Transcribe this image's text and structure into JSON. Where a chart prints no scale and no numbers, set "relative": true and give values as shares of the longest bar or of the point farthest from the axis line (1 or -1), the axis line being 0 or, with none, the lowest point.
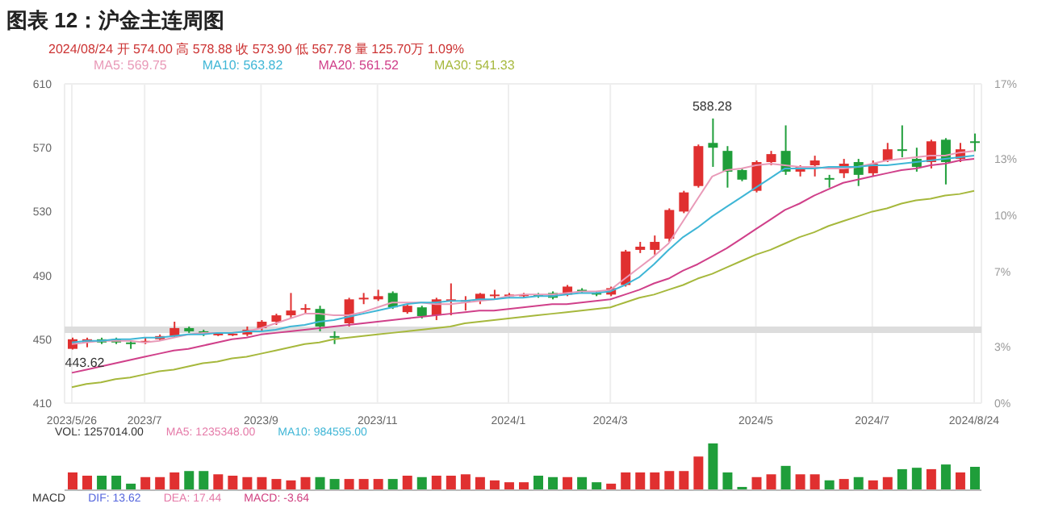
{
  "chart_data": [
    {
      "type": "candlestick",
      "title": "图表 12：沪金主连周图",
      "annotations": [
        "2024/08/24 开 574.00 高 578.88 收 573.90 低 567.78 量 125.70万 1.09%",
        {
          "text": "588.28",
          "y": 588.28
        },
        {
          "text": "443.62",
          "y": 443.62
        }
      ],
      "categories": [
        "2023/5/26",
        null,
        null,
        null,
        null,
        "2023/7",
        null,
        null,
        null,
        null,
        null,
        null,
        null,
        "2023/9",
        null,
        null,
        null,
        null,
        null,
        null,
        null,
        "2023/11",
        null,
        null,
        null,
        null,
        null,
        null,
        null,
        null,
        "2024/1",
        null,
        null,
        null,
        null,
        null,
        null,
        "2024/3",
        null,
        null,
        null,
        null,
        null,
        null,
        null,
        null,
        null,
        "2024/5",
        null,
        null,
        null,
        null,
        null,
        null,
        null,
        "2024/7",
        null,
        null,
        null,
        null,
        null,
        null,
        "2024/8/24"
      ],
      "ohlc": [
        [
          444,
          451,
          443.62,
          450
        ],
        [
          448,
          451,
          445,
          450
        ],
        [
          450,
          451,
          447,
          448
        ],
        [
          450,
          451,
          447,
          448
        ],
        [
          448,
          449,
          444,
          447
        ],
        [
          448,
          451,
          447,
          449
        ],
        [
          450,
          453,
          449,
          452
        ],
        [
          452,
          461,
          451,
          457
        ],
        [
          457,
          458,
          454,
          455
        ],
        [
          455,
          456,
          452,
          453
        ],
        [
          453,
          454,
          452,
          453.5
        ],
        [
          453,
          454,
          452,
          453.5
        ],
        [
          453,
          458,
          452,
          456
        ],
        [
          457,
          462,
          455,
          461
        ],
        [
          461,
          466,
          459,
          465
        ],
        [
          465,
          479,
          463,
          468
        ],
        [
          469,
          472,
          466,
          469.5
        ],
        [
          469,
          471,
          455,
          458
        ],
        [
          452,
          455,
          447,
          451
        ],
        [
          460,
          476,
          458,
          475
        ],
        [
          475,
          479,
          472,
          476
        ],
        [
          475,
          481,
          474,
          477
        ],
        [
          479,
          480,
          469,
          470
        ],
        [
          467,
          472,
          466,
          471
        ],
        [
          470,
          471,
          463,
          464.5
        ],
        [
          465,
          476,
          462,
          475
        ],
        [
          474,
          485,
          465,
          475
        ],
        [
          474,
          477,
          468,
          474.5
        ],
        [
          474.5,
          479,
          472,
          478.5
        ],
        [
          477,
          481,
          475,
          478
        ],
        [
          477,
          479,
          476,
          478
        ],
        [
          477,
          479,
          476,
          478
        ],
        [
          478,
          479,
          476,
          477
        ],
        [
          479,
          480,
          475,
          476
        ],
        [
          478,
          484,
          477,
          483
        ],
        [
          481,
          482,
          479,
          480
        ],
        [
          479,
          480,
          477,
          478
        ],
        [
          478,
          483,
          477,
          482
        ],
        [
          484,
          506,
          483,
          505
        ],
        [
          506,
          511,
          504,
          508
        ],
        [
          506,
          515,
          503,
          511
        ],
        [
          513,
          532,
          511,
          531
        ],
        [
          530,
          543,
          529,
          542
        ],
        [
          546,
          572,
          545,
          571
        ],
        [
          573,
          588.28,
          558,
          570
        ],
        [
          568,
          571,
          545,
          555
        ],
        [
          556,
          557,
          549,
          550
        ],
        [
          543,
          562,
          542,
          561
        ],
        [
          561,
          568,
          559,
          566
        ],
        [
          568,
          584,
          553,
          555
        ],
        [
          555,
          559,
          552,
          558
        ],
        [
          559,
          565,
          552,
          562
        ],
        [
          551,
          553,
          545,
          550
        ],
        [
          554,
          563,
          551,
          560
        ],
        [
          561,
          563,
          546,
          553
        ],
        [
          554,
          562,
          552,
          560
        ],
        [
          562,
          573,
          561,
          569
        ],
        [
          569,
          584,
          564,
          568
        ],
        [
          563,
          570,
          555,
          558
        ],
        [
          561,
          575,
          557,
          574
        ],
        [
          575,
          576,
          547,
          561
        ],
        [
          563,
          573,
          561,
          569
        ],
        [
          574,
          578.88,
          567.78,
          573.9
        ]
      ],
      "colors": [
        "#e03030",
        "#e03030",
        "#1f9e3a",
        "#1f9e3a",
        "#1f9e3a",
        "#e03030",
        "#e03030",
        "#e03030",
        "#1f9e3a",
        "#1f9e3a",
        "#e03030",
        "#e03030",
        "#e03030",
        "#e03030",
        "#e03030",
        "#e03030",
        "#e03030",
        "#1f9e3a",
        "#1f9e3a",
        "#e03030",
        "#e03030",
        "#e03030",
        "#1f9e3a",
        "#e03030",
        "#1f9e3a",
        "#e03030",
        "#e03030",
        "#e03030",
        "#e03030",
        "#e03030",
        "#e03030",
        "#e03030",
        "#1f9e3a",
        "#1f9e3a",
        "#e03030",
        "#1f9e3a",
        "#1f9e3a",
        "#e03030",
        "#e03030",
        "#e03030",
        "#e03030",
        "#e03030",
        "#e03030",
        "#e03030",
        "#1f9e3a",
        "#1f9e3a",
        "#1f9e3a",
        "#e03030",
        "#e03030",
        "#1f9e3a",
        "#e03030",
        "#e03030",
        "#1f9e3a",
        "#e03030",
        "#1f9e3a",
        "#e03030",
        "#e03030",
        "#1f9e3a",
        "#1f9e3a",
        "#e03030",
        "#1f9e3a",
        "#e03030",
        "#1f9e3a"
      ],
      "series": [
        {
          "type": "line",
          "name": "MA5: 569.75",
          "color": "#e99ab8",
          "values": [
            447,
            448,
            449,
            449,
            449,
            448,
            449,
            451,
            453,
            454,
            454,
            454,
            455,
            457,
            460,
            463,
            466,
            466,
            465,
            465,
            467,
            470,
            473,
            473,
            473,
            472,
            472,
            473,
            474,
            475,
            477,
            478,
            478,
            478,
            479,
            480,
            480,
            481,
            488,
            495,
            502,
            510,
            524,
            538,
            552,
            556,
            557,
            559,
            560,
            559,
            558,
            558,
            557,
            557,
            558,
            560,
            562,
            563,
            564,
            565,
            565,
            567,
            568
          ]
        },
        {
          "type": "line",
          "name": "MA10: 563.82",
          "color": "#3fb6d6",
          "values": [
            448,
            449,
            449,
            450,
            450,
            451,
            451,
            452,
            453,
            453,
            454,
            454,
            455,
            455,
            456,
            458,
            459,
            461,
            462,
            464,
            466,
            468,
            470,
            472,
            473,
            473,
            474,
            474,
            475,
            475,
            476,
            476,
            477,
            477,
            478,
            479,
            479,
            480,
            484,
            489,
            497,
            506,
            514,
            520,
            527,
            533,
            539,
            545,
            551,
            557,
            557,
            557,
            558,
            558,
            558,
            559,
            559,
            560,
            561,
            562,
            563,
            564,
            565
          ]
        },
        {
          "type": "line",
          "name": "MA20: 561.52",
          "color": "#d0408a",
          "values": [
            429,
            431,
            433,
            435,
            437,
            439,
            441,
            443,
            444,
            446,
            448,
            450,
            451,
            453,
            454,
            455,
            456,
            457,
            458,
            459,
            460,
            461,
            462,
            463,
            464,
            465,
            466,
            467,
            468,
            468,
            469,
            470,
            471,
            472,
            472,
            473,
            474,
            475,
            478,
            481,
            485,
            488,
            493,
            497,
            502,
            507,
            513,
            519,
            525,
            531,
            535,
            540,
            544,
            548,
            550,
            552,
            554,
            556,
            557,
            559,
            560,
            562,
            563
          ]
        },
        {
          "type": "line",
          "name": "MA30: 541.33",
          "color": "#a6b83c",
          "values": [
            420,
            422,
            423,
            425,
            426,
            428,
            430,
            431,
            433,
            435,
            436,
            438,
            439,
            441,
            443,
            445,
            447,
            448,
            450,
            451,
            452,
            453,
            454,
            455,
            456,
            457,
            458,
            460,
            461,
            462,
            463,
            464,
            465,
            466,
            467,
            468,
            469,
            470,
            473,
            476,
            478,
            481,
            484,
            488,
            491,
            495,
            499,
            503,
            506,
            510,
            514,
            517,
            521,
            524,
            527,
            530,
            532,
            535,
            537,
            538,
            540,
            541,
            543
          ]
        }
      ],
      "ylim": [
        410,
        610
      ],
      "yticks": [
        410,
        450,
        490,
        530,
        570,
        610
      ],
      "y2lim": [
        0,
        17
      ],
      "y2ticks": [
        {
          "value": 0,
          "label": "0%"
        },
        {
          "value": 3,
          "label": "3%"
        },
        {
          "value": 7,
          "label": "7%"
        },
        {
          "value": 10,
          "label": "10%"
        },
        {
          "value": 13,
          "label": "13%"
        },
        {
          "value": 17,
          "label": "17%"
        }
      ],
      "bands": [
        {
          "axis": "y",
          "from": 454,
          "to": 458,
          "color": "#dddddd"
        }
      ],
      "grid": true,
      "legend": "top left"
    },
    {
      "type": "bar",
      "relative": true,
      "tick_labels": false,
      "annotations": [
        "VOL: 1257014.00",
        "MA5: 1235348.00",
        "MA10: 984595.00",
        "MACD",
        "DIF: 13.62",
        "DEA: 17.44",
        "MACD: -3.64"
      ],
      "categories": [
        "2023/5/26",
        null,
        null,
        null,
        null,
        "2023/7",
        null,
        null,
        null,
        null,
        null,
        null,
        null,
        "2023/9",
        null,
        null,
        null,
        null,
        null,
        null,
        null,
        "2023/11",
        null,
        null,
        null,
        null,
        null,
        null,
        null,
        null,
        "2024/1",
        null,
        null,
        null,
        null,
        null,
        null,
        "2024/3",
        null,
        null,
        null,
        null,
        null,
        null,
        null,
        null,
        null,
        "2024/5",
        null,
        null,
        null,
        null,
        null,
        null,
        null,
        "2024/7",
        null,
        null,
        null,
        null,
        null,
        null,
        "2024/8/24"
      ],
      "values": [
        0.38,
        0.31,
        0.31,
        0.31,
        0.14,
        0.28,
        0.28,
        0.38,
        0.41,
        0.41,
        0.34,
        0.31,
        0.28,
        0.28,
        0.24,
        0.21,
        0.28,
        0.28,
        0.24,
        0.24,
        0.24,
        0.24,
        0.24,
        0.31,
        0.28,
        0.31,
        0.31,
        0.34,
        0.28,
        0.21,
        0.17,
        0.17,
        0.31,
        0.28,
        0.28,
        0.28,
        0.17,
        0.14,
        0.38,
        0.38,
        0.38,
        0.41,
        0.41,
        0.72,
        1,
        0.38,
        0.07,
        0.28,
        0.34,
        0.52,
        0.34,
        0.34,
        0.21,
        0.24,
        0.28,
        0.21,
        0.28,
        0.45,
        0.48,
        0.45,
        0.55,
        0.38,
        0.5
      ],
      "colors": [
        "#e03030",
        "#e03030",
        "#1f9e3a",
        "#1f9e3a",
        "#1f9e3a",
        "#e03030",
        "#e03030",
        "#e03030",
        "#1f9e3a",
        "#1f9e3a",
        "#e03030",
        "#e03030",
        "#e03030",
        "#e03030",
        "#e03030",
        "#e03030",
        "#e03030",
        "#1f9e3a",
        "#1f9e3a",
        "#e03030",
        "#e03030",
        "#e03030",
        "#1f9e3a",
        "#e03030",
        "#1f9e3a",
        "#e03030",
        "#e03030",
        "#e03030",
        "#e03030",
        "#e03030",
        "#e03030",
        "#e03030",
        "#1f9e3a",
        "#1f9e3a",
        "#e03030",
        "#1f9e3a",
        "#1f9e3a",
        "#e03030",
        "#e03030",
        "#e03030",
        "#e03030",
        "#e03030",
        "#e03030",
        "#e03030",
        "#1f9e3a",
        "#1f9e3a",
        "#1f9e3a",
        "#e03030",
        "#e03030",
        "#1f9e3a",
        "#e03030",
        "#e03030",
        "#1f9e3a",
        "#e03030",
        "#1f9e3a",
        "#e03030",
        "#e03030",
        "#1f9e3a",
        "#1f9e3a",
        "#e03030",
        "#1f9e3a",
        "#e03030",
        "#1f9e3a"
      ]
    }
  ]
}
